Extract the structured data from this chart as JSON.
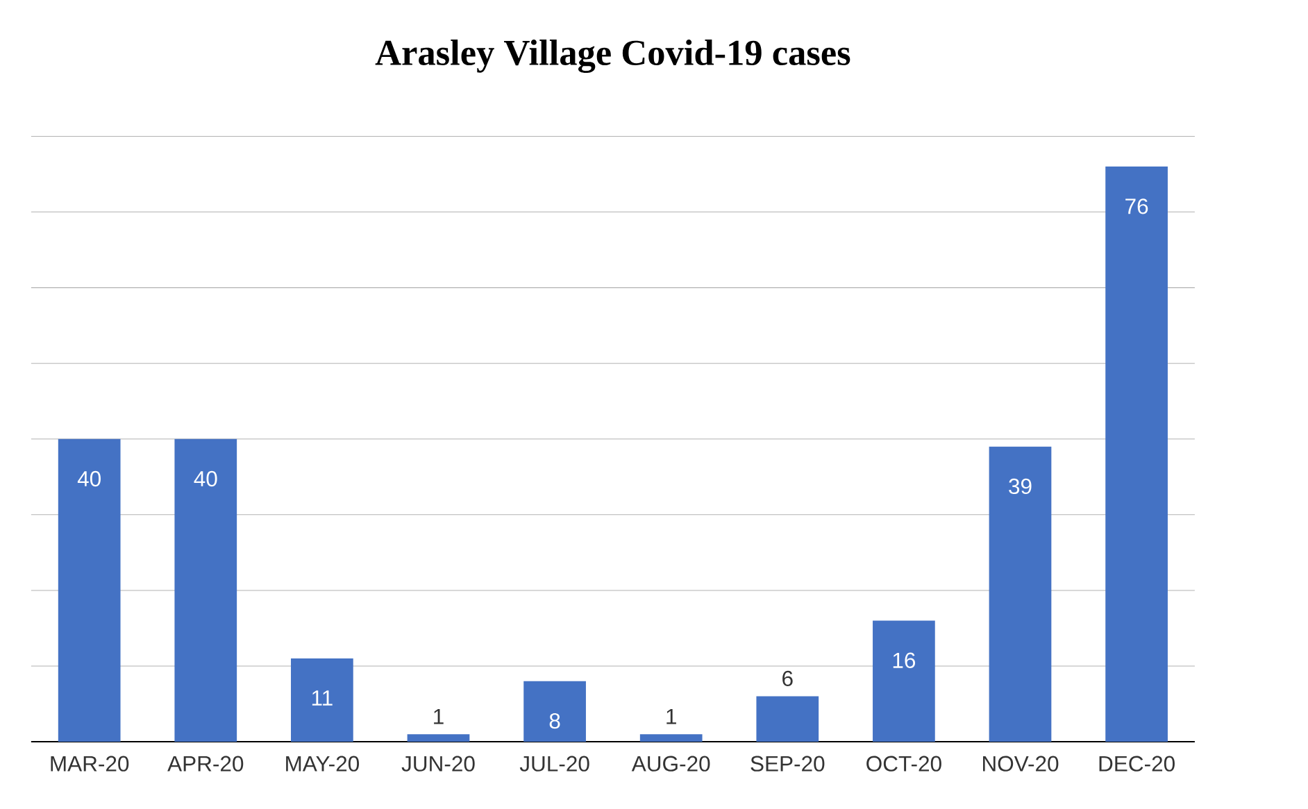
{
  "chart_data": {
    "type": "bar",
    "title": "Arasley Village Covid-19 cases",
    "categories": [
      "MAR-20",
      "APR-20",
      "MAY-20",
      "JUN-20",
      "JUL-20",
      "AUG-20",
      "SEP-20",
      "OCT-20",
      "NOV-20",
      "DEC-20"
    ],
    "values": [
      40,
      40,
      11,
      1,
      8,
      1,
      6,
      16,
      39,
      76
    ],
    "color": "#4472c4",
    "data_labels": true,
    "grid": "y",
    "tick_labels": "x"
  }
}
